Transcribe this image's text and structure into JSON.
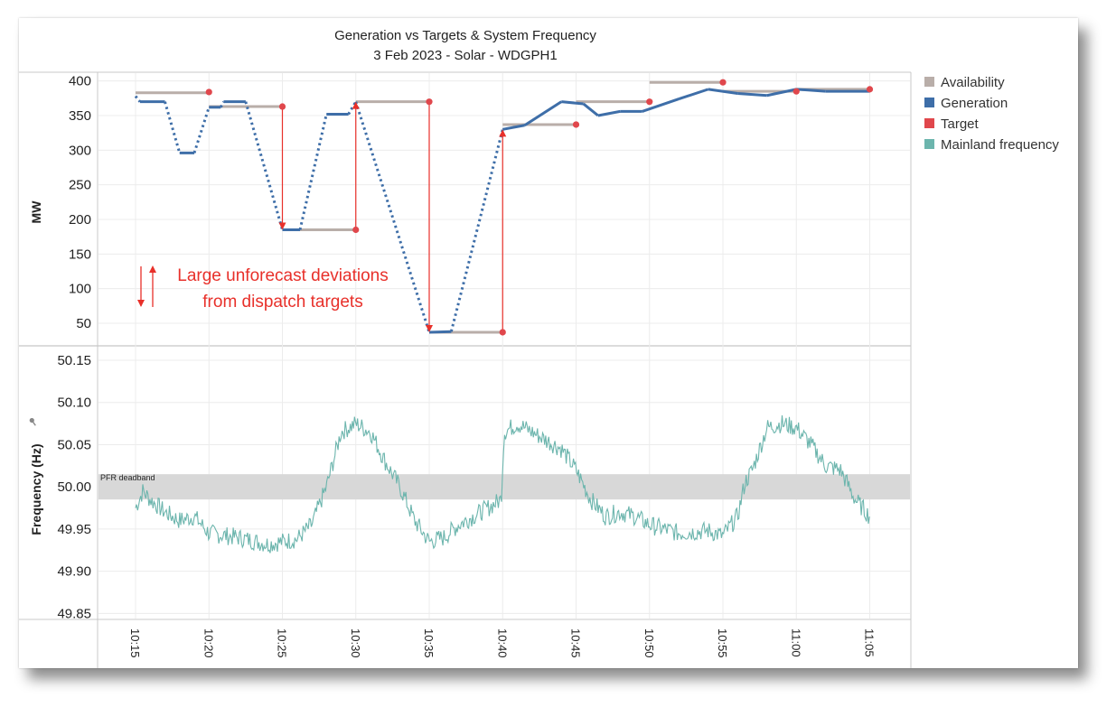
{
  "colors": {
    "availability": "#b9aea9",
    "generation": "#3e6ea8",
    "target": "#e0474c",
    "frequency": "#6cb5ad",
    "annotation": "#e8302a",
    "deadband": "#d8d8d8",
    "grid": "#ececec",
    "divider": "#c8c8c8"
  },
  "chart_data": [
    {
      "type": "line",
      "title": "Generation vs Targets & System Frequency",
      "subtitle": "3 Feb 2023 - Solar - WDGPH1",
      "ylabel": "MW",
      "ylim": [
        20,
        410
      ],
      "yticks": [
        50,
        100,
        150,
        200,
        250,
        300,
        350,
        400
      ],
      "xlim": [
        10.25,
        11.083333
      ],
      "legend": [
        {
          "name": "Availability",
          "color": "#b9aea9"
        },
        {
          "name": "Generation",
          "color": "#3e6ea8"
        },
        {
          "name": "Target",
          "color": "#e0474c"
        },
        {
          "name": "Mainland frequency",
          "color": "#6cb5ad"
        }
      ],
      "availability_segments": [
        {
          "x0": "10:15",
          "x1": "10:20",
          "y": 383
        },
        {
          "x0": "10:20",
          "x1": "10:25",
          "y": 363
        },
        {
          "x0": "10:25",
          "x1": "10:30",
          "y": 185
        },
        {
          "x0": "10:30",
          "x1": "10:35",
          "y": 370
        },
        {
          "x0": "10:35",
          "x1": "10:40",
          "y": 37
        },
        {
          "x0": "10:40",
          "x1": "10:45",
          "y": 337
        },
        {
          "x0": "10:45",
          "x1": "10:50",
          "y": 370
        },
        {
          "x0": "10:50",
          "x1": "10:55",
          "y": 398
        },
        {
          "x0": "10:55",
          "x1": "11:00",
          "y": 385
        },
        {
          "x0": "11:00",
          "x1": "11:05",
          "y": 388
        }
      ],
      "targets": [
        {
          "x": "10:20",
          "y": 384
        },
        {
          "x": "10:25",
          "y": 363
        },
        {
          "x": "10:30",
          "y": 185
        },
        {
          "x": "10:35",
          "y": 370
        },
        {
          "x": "10:40",
          "y": 37
        },
        {
          "x": "10:45",
          "y": 337
        },
        {
          "x": "10:50",
          "y": 370
        },
        {
          "x": "10:55",
          "y": 398
        },
        {
          "x": "11:00",
          "y": 385
        },
        {
          "x": "11:05",
          "y": 388
        }
      ],
      "generation_keypoints": [
        [
          "10:15",
          378
        ],
        [
          "10:15.3",
          370
        ],
        [
          "10:17",
          370
        ],
        [
          "10:18",
          296
        ],
        [
          "10:19",
          296
        ],
        [
          "10:20",
          362
        ],
        [
          "10:20.8",
          362
        ],
        [
          "10:21",
          370
        ],
        [
          "10:22.5",
          370
        ],
        [
          "10:25",
          185
        ],
        [
          "10:26.2",
          185
        ],
        [
          "10:28",
          352
        ],
        [
          "10:29.5",
          352
        ],
        [
          "10:30",
          370
        ],
        [
          "10:35",
          37
        ],
        [
          "10:36.5",
          38
        ],
        [
          "10:40",
          330
        ],
        [
          "10:41.5",
          336
        ],
        [
          "10:44",
          370
        ],
        [
          "10:45.5",
          367
        ],
        [
          "10:46.5",
          350
        ],
        [
          "10:48",
          356
        ],
        [
          "10:49.5",
          356
        ],
        [
          "10:52",
          374
        ],
        [
          "10:54",
          388
        ],
        [
          "10:56",
          382
        ],
        [
          "10:58",
          379
        ],
        [
          "11:00",
          388
        ],
        [
          "11:02",
          385
        ],
        [
          "11:05",
          385
        ]
      ],
      "arrows": [
        {
          "x": "10:25",
          "from": 363,
          "to": 185
        },
        {
          "x": "10:30",
          "from": 185,
          "to": 370
        },
        {
          "x": "10:35",
          "from": 370,
          "to": 37
        },
        {
          "x": "10:40",
          "from": 37,
          "to": 330
        }
      ],
      "annotation": {
        "line1": "Large unforecast deviations",
        "line2": "from dispatch targets"
      }
    },
    {
      "type": "line",
      "ylabel": "Frequency (Hz)",
      "ylim": [
        49.845,
        50.165
      ],
      "yticks": [
        "49.85",
        "49.90",
        "49.95",
        "50.00",
        "50.05",
        "50.10",
        "50.15"
      ],
      "xticks": [
        "10:15",
        "10:20",
        "10:25",
        "10:30",
        "10:35",
        "10:40",
        "10:45",
        "10:50",
        "10:55",
        "11:00",
        "11:05"
      ],
      "deadband": {
        "label": "PFR deadband",
        "low": 49.985,
        "high": 50.015
      },
      "series": [
        {
          "name": "Mainland frequency",
          "keypoints": [
            [
              "10:15",
              49.975
            ],
            [
              "10:15.5",
              49.995
            ],
            [
              "10:16",
              49.985
            ],
            [
              "10:17",
              49.97
            ],
            [
              "10:18",
              49.96
            ],
            [
              "10:19",
              49.965
            ],
            [
              "10:20",
              49.945
            ],
            [
              "10:22",
              49.94
            ],
            [
              "10:24",
              49.932
            ],
            [
              "10:26",
              49.938
            ],
            [
              "10:27",
              49.955
            ],
            [
              "10:28",
              50.0
            ],
            [
              "10:29",
              50.065
            ],
            [
              "10:30",
              50.075
            ],
            [
              "10:31",
              50.065
            ],
            [
              "10:32",
              50.03
            ],
            [
              "10:33",
              50.0
            ],
            [
              "10:34",
              49.96
            ],
            [
              "10:35",
              49.935
            ],
            [
              "10:36",
              49.94
            ],
            [
              "10:37",
              49.955
            ],
            [
              "10:38",
              49.965
            ],
            [
              "10:39",
              49.975
            ],
            [
              "10:39.9",
              49.985
            ],
            [
              "10:40.1",
              50.065
            ],
            [
              "10:41",
              50.075
            ],
            [
              "10:42",
              50.065
            ],
            [
              "10:43",
              50.055
            ],
            [
              "10:44",
              50.045
            ],
            [
              "10:45",
              50.02
            ],
            [
              "10:46",
              49.985
            ],
            [
              "10:47",
              49.965
            ],
            [
              "10:48",
              49.97
            ],
            [
              "10:49",
              49.965
            ],
            [
              "10:50",
              49.955
            ],
            [
              "10:52",
              49.945
            ],
            [
              "10:54",
              49.948
            ],
            [
              "10:55",
              49.942
            ],
            [
              "10:56",
              49.965
            ],
            [
              "10:56.5",
              50.005
            ],
            [
              "10:57",
              50.02
            ],
            [
              "10:58",
              50.07
            ],
            [
              "10:59",
              50.075
            ],
            [
              "11:00",
              50.07
            ],
            [
              "11:01",
              50.05
            ],
            [
              "11:02",
              50.025
            ],
            [
              "11:03",
              50.02
            ],
            [
              "11:04",
              49.985
            ],
            [
              "11:05",
              49.965
            ]
          ]
        }
      ]
    }
  ]
}
